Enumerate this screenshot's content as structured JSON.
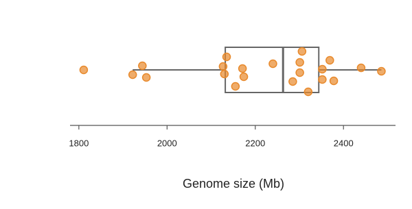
{
  "chart_data": {
    "type": "box",
    "x_label": "Genome size (Mb)",
    "xlim": [
      1780,
      2518
    ],
    "xticks": [
      1800,
      2000,
      2200,
      2400
    ],
    "box": {
      "whislo": 1922,
      "q1": 2132,
      "med": 2263,
      "q3": 2344,
      "whishi": 2486
    },
    "points": {
      "color": "#e8892b",
      "values": [
        1811,
        1922,
        1944,
        1953,
        2135,
        2127,
        2130,
        2155,
        2171,
        2174,
        2240,
        2306,
        2301,
        2301,
        2285,
        2320,
        2352,
        2352,
        2369,
        2378,
        2440,
        2486
      ]
    }
  }
}
